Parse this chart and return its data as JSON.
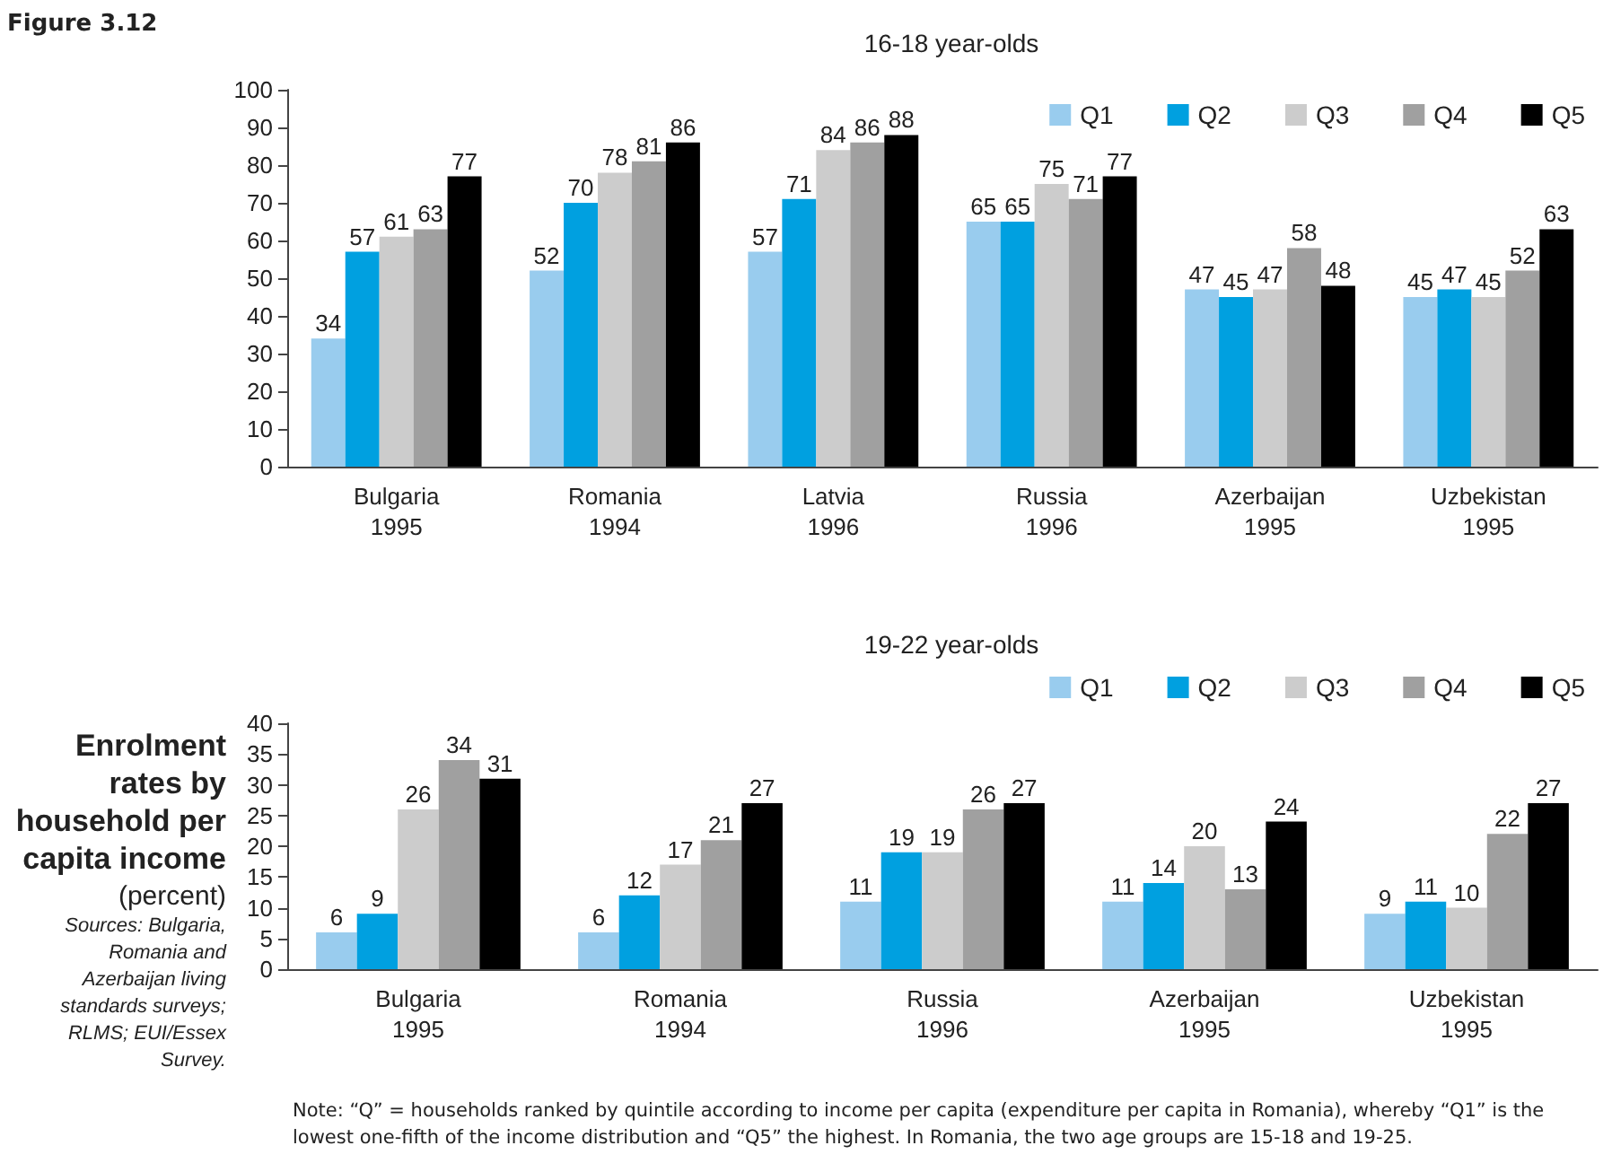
{
  "chart_data": [
    {
      "type": "bar",
      "title": "16-18 year-olds",
      "annotations": [
        "Figure 3.12"
      ],
      "categories": [
        "Bulgaria\n1995",
        "Romania\n1994",
        "Latvia\n1996",
        "Russia\n1996",
        "Azerbaijan\n1995",
        "Uzbekistan\n1995"
      ],
      "series": [
        {
          "name": "Q1",
          "color": "#99ccee",
          "values": [
            34,
            52,
            57,
            65,
            47,
            45
          ]
        },
        {
          "name": "Q2",
          "color": "#00a0e0",
          "values": [
            57,
            70,
            71,
            65,
            45,
            47
          ]
        },
        {
          "name": "Q3",
          "color": "#cccccc",
          "values": [
            61,
            78,
            84,
            75,
            47,
            45
          ]
        },
        {
          "name": "Q4",
          "color": "#a0a0a0",
          "values": [
            63,
            81,
            86,
            71,
            58,
            52
          ]
        },
        {
          "name": "Q5",
          "color": "#000000",
          "values": [
            77,
            86,
            88,
            77,
            48,
            63
          ]
        }
      ],
      "ylim": [
        0,
        100
      ],
      "yticks": [
        0,
        10,
        20,
        30,
        40,
        50,
        60,
        70,
        80,
        90,
        100
      ],
      "data_labels": true,
      "legend": "top right",
      "grid": false
    },
    {
      "type": "bar",
      "title": "19-22 year-olds",
      "annotations": [
        "Enrolment rates by household per capita income",
        "(percent)",
        "Sources: Bulgaria, Romania and Azerbaijan living standards surveys; RLMS; EUI/Essex Survey.",
        "Note: “Q” = households ranked by quintile according to income per capita (expenditure per capita in Romania), whereby “Q1” is the lowest one-fifth of the income distribution and “Q5” the highest. In Romania, the two age groups are 15-18 and 19-25."
      ],
      "categories": [
        "Bulgaria\n1995",
        "Romania\n1994",
        "Russia\n1996",
        "Azerbaijan\n1995",
        "Uzbekistan\n1995"
      ],
      "series": [
        {
          "name": "Q1",
          "color": "#99ccee",
          "values": [
            6,
            6,
            11,
            11,
            9
          ]
        },
        {
          "name": "Q2",
          "color": "#00a0e0",
          "values": [
            9,
            12,
            19,
            14,
            11
          ]
        },
        {
          "name": "Q3",
          "color": "#cccccc",
          "values": [
            26,
            17,
            19,
            20,
            10
          ]
        },
        {
          "name": "Q4",
          "color": "#a0a0a0",
          "values": [
            34,
            21,
            26,
            13,
            22
          ]
        },
        {
          "name": "Q5",
          "color": "#000000",
          "values": [
            31,
            27,
            27,
            24,
            27
          ]
        }
      ],
      "ylim": [
        0,
        40
      ],
      "yticks": [
        0,
        5,
        10,
        15,
        20,
        25,
        30,
        35,
        40
      ],
      "data_labels": true,
      "legend": "top right",
      "grid": false
    }
  ]
}
